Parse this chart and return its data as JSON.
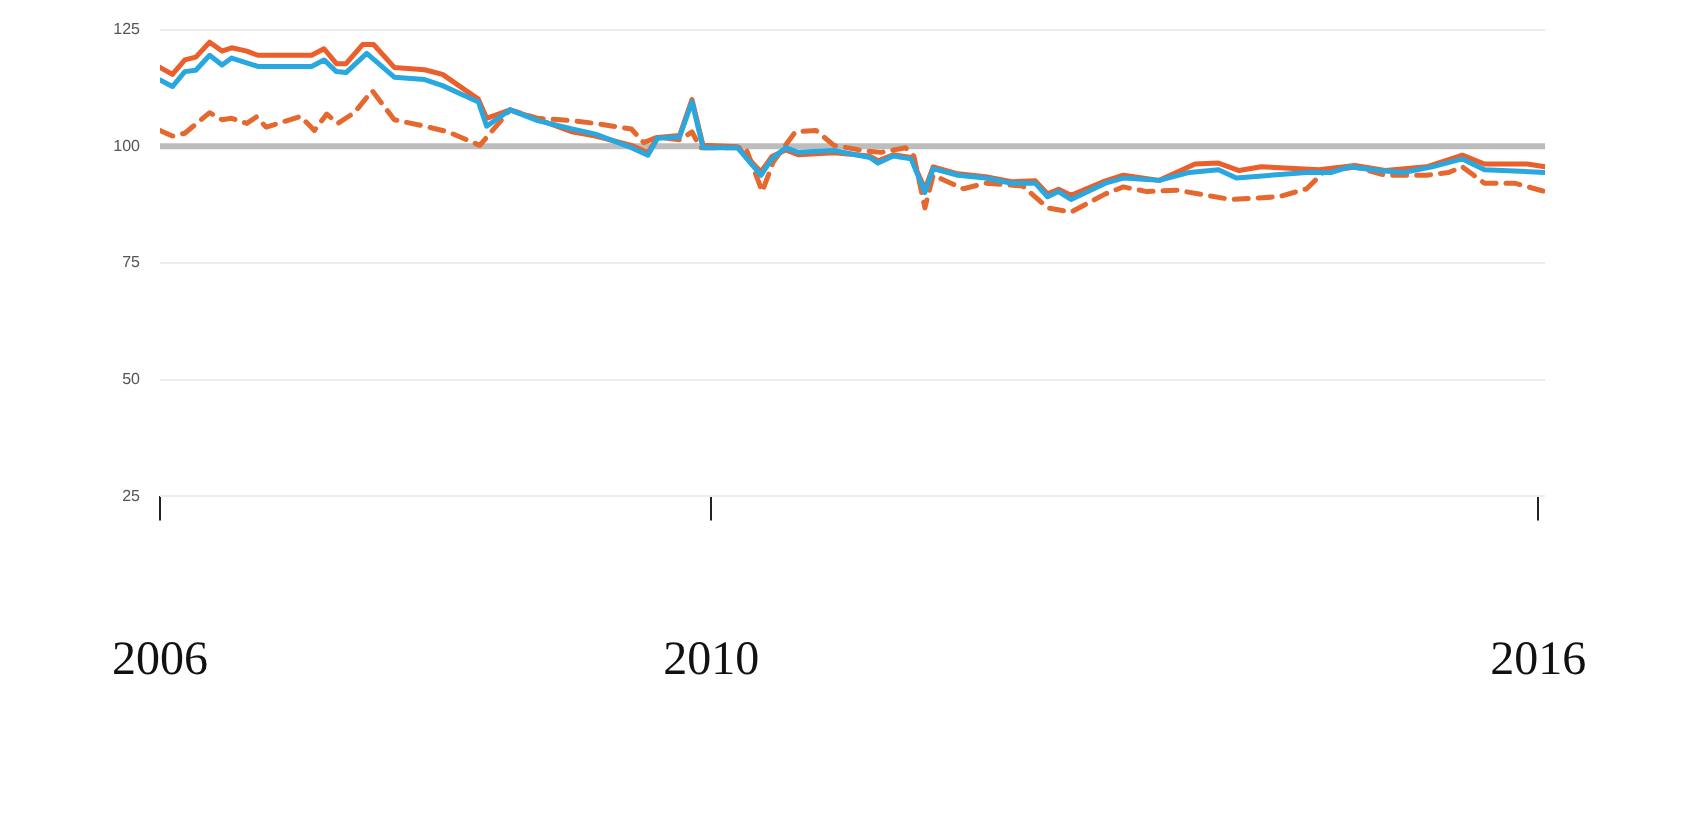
{
  "chart_data": {
    "type": "line",
    "grid": "y",
    "marker": "none",
    "xlim": [
      2006,
      2016.05
    ],
    "xticks": [
      2006,
      2010,
      2016
    ],
    "ylim": [
      25,
      125
    ],
    "yticks": [
      25,
      50,
      75,
      100,
      125
    ],
    "ref_lines": [
      {
        "axis": "y",
        "value": 100,
        "label": null,
        "color": "#bdbdbd"
      }
    ],
    "series": [
      {
        "color": "#29a8e0",
        "line_style": "solid",
        "x": [
          2006.0,
          2006.09,
          2006.18,
          2006.26,
          2006.36,
          2006.45,
          2006.52,
          2006.71,
          2007.1,
          2007.19,
          2007.28,
          2007.35,
          2007.5,
          2007.7,
          2007.92,
          2008.05,
          2008.31,
          2008.37,
          2008.54,
          2008.74,
          2008.99,
          2009.16,
          2009.42,
          2009.54,
          2009.61,
          2009.77,
          2009.86,
          2009.94,
          2010.19,
          2010.36,
          2010.44,
          2010.54,
          2010.63,
          2010.89,
          2011.15,
          2011.21,
          2011.32,
          2011.45,
          2011.55,
          2011.61,
          2011.79,
          2011.99,
          2012.18,
          2012.35,
          2012.44,
          2012.52,
          2012.61,
          2012.86,
          2012.99,
          2013.25,
          2013.47,
          2013.68,
          2013.81,
          2014.32,
          2014.5,
          2014.63,
          2014.84,
          2015.02,
          2015.23,
          2015.45,
          2015.61,
          2016.05
        ],
        "values": [
          114.2,
          112.8,
          116,
          116.3,
          119.5,
          117.4,
          118.9,
          117.1,
          117.1,
          118.5,
          116,
          115.8,
          119.9,
          114.8,
          114.3,
          113,
          109.5,
          104.3,
          107.8,
          105.5,
          103.7,
          102.6,
          99.7,
          98.1,
          101.7,
          102,
          109.5,
          99.7,
          99.7,
          93.8,
          97.3,
          99.7,
          98.7,
          99.1,
          97.6,
          96.4,
          97.9,
          97.3,
          90.1,
          95.2,
          93.8,
          93.2,
          92.1,
          92.1,
          89.2,
          90.3,
          88.6,
          92.1,
          93.2,
          92.7,
          94.4,
          95,
          93.2,
          94.4,
          94.4,
          95.6,
          94.8,
          94.4,
          95.6,
          97.3,
          95,
          94.4
        ]
      },
      {
        "color": "#ea5f2b",
        "line_style": "solid",
        "x": [
          2006.0,
          2006.09,
          2006.18,
          2006.26,
          2006.36,
          2006.45,
          2006.52,
          2006.63,
          2006.71,
          2007.1,
          2007.19,
          2007.28,
          2007.35,
          2007.47,
          2007.55,
          2007.7,
          2007.92,
          2008.05,
          2008.31,
          2008.37,
          2008.54,
          2008.74,
          2008.99,
          2009.16,
          2009.42,
          2009.54,
          2009.61,
          2009.77,
          2009.86,
          2009.94,
          2010.19,
          2010.36,
          2010.44,
          2010.54,
          2010.63,
          2010.89,
          2011.15,
          2011.21,
          2011.32,
          2011.45,
          2011.55,
          2011.61,
          2011.79,
          2011.99,
          2012.18,
          2012.35,
          2012.44,
          2012.52,
          2012.61,
          2012.86,
          2012.99,
          2013.25,
          2013.51,
          2013.68,
          2013.83,
          2013.99,
          2014.41,
          2014.67,
          2014.89,
          2015.19,
          2015.45,
          2015.61,
          2015.92,
          2016.05
        ],
        "values": [
          116.9,
          115.4,
          118.5,
          119.1,
          122.3,
          120.4,
          121.1,
          120.4,
          119.5,
          119.5,
          120.9,
          117.7,
          117.7,
          121.8,
          121.8,
          116.9,
          116.4,
          115.4,
          110.1,
          106,
          107.8,
          105.8,
          103.1,
          102.2,
          100.2,
          98.6,
          101.9,
          102.3,
          110,
          100.2,
          99.9,
          94.5,
          97.8,
          99.2,
          98.2,
          98.6,
          97.9,
          96.9,
          98.2,
          97.6,
          90.8,
          95.6,
          94.1,
          93.5,
          92.4,
          92.6,
          89.8,
          90.8,
          89.5,
          92.6,
          93.8,
          92.7,
          96.2,
          96.4,
          94.8,
          95.6,
          95,
          95.9,
          94.8,
          95.6,
          98.1,
          96.2,
          96.2,
          95.6
        ]
      },
      {
        "color": "#e5692f",
        "line_style": "dashed",
        "x": [
          2006.0,
          2006.09,
          2006.18,
          2006.36,
          2006.45,
          2006.52,
          2006.63,
          2006.7,
          2006.77,
          2007.02,
          2007.12,
          2007.21,
          2007.29,
          2007.41,
          2007.54,
          2007.7,
          2007.92,
          2008.09,
          2008.32,
          2008.54,
          2008.74,
          2008.99,
          2009.16,
          2009.42,
          2009.51,
          2009.61,
          2009.77,
          2009.86,
          2009.92,
          2010.25,
          2010.37,
          2010.45,
          2010.61,
          2010.76,
          2010.89,
          2011.1,
          2011.23,
          2011.41,
          2011.47,
          2011.55,
          2011.61,
          2011.83,
          2011.99,
          2012.26,
          2012.44,
          2012.61,
          2012.86,
          2012.99,
          2013.16,
          2013.38,
          2013.77,
          2014.12,
          2014.32,
          2014.44,
          2014.67,
          2014.89,
          2015.19,
          2015.35,
          2015.45,
          2015.61,
          2015.83,
          2016.05
        ],
        "values": [
          103.4,
          102.2,
          102.8,
          107.2,
          105.7,
          106,
          104.9,
          106.3,
          104.1,
          106.4,
          103.4,
          106.9,
          104.9,
          107.2,
          111.9,
          105.7,
          104.3,
          103.1,
          100.2,
          107.8,
          106,
          105.5,
          104.9,
          103.7,
          100.8,
          102,
          101.4,
          103.1,
          99.7,
          99.7,
          90.3,
          96.7,
          103.1,
          103.4,
          100.2,
          99.1,
          98.7,
          99.7,
          97.9,
          86.8,
          93.8,
          90.9,
          92.1,
          91.5,
          86.8,
          85.9,
          89.8,
          91.3,
          90.3,
          90.6,
          88.6,
          89.2,
          90.9,
          94.4,
          95.6,
          93.8,
          93.8,
          94.4,
          95.6,
          92.1,
          92.1,
          90.3
        ]
      }
    ]
  }
}
